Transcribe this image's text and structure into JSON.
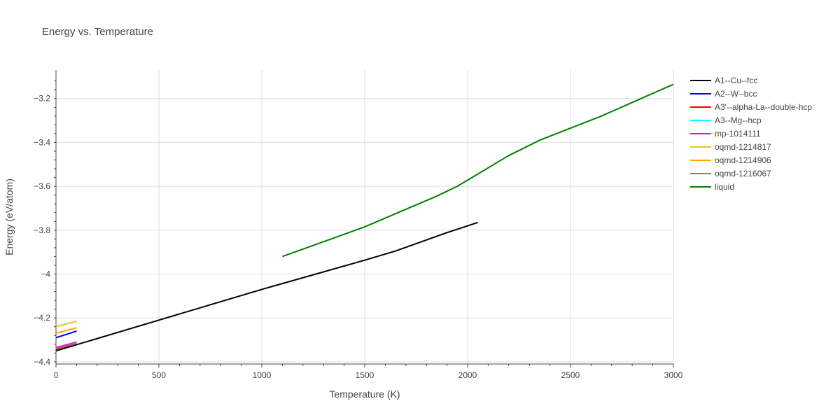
{
  "chart_data": {
    "type": "line",
    "title": "Energy vs. Temperature",
    "xlabel": "Temperature (K)",
    "ylabel": "Energy (eV/atom)",
    "xlim": [
      0,
      3000
    ],
    "ylim": [
      -4.41,
      -3.07
    ],
    "x_ticks": [
      0,
      500,
      1000,
      1500,
      2000,
      2500,
      3000
    ],
    "x_tick_labels": [
      "0",
      "500",
      "1000",
      "1500",
      "2000",
      "2500",
      "3000"
    ],
    "y_ticks": [
      -4.4,
      -4.2,
      -4.0,
      -3.8,
      -3.6,
      -3.4,
      -3.2
    ],
    "y_tick_labels": [
      "−4.4",
      "−4.2",
      "−4",
      "−3.8",
      "−3.6",
      "−3.4",
      "−3.2"
    ],
    "grid": true,
    "legend_position": "right",
    "series": [
      {
        "name": "A1--Cu--fcc",
        "color": "#000000",
        "x": [
          0,
          500,
          1000,
          1500,
          1650,
          1900,
          2050
        ],
        "y": [
          -4.35,
          -4.21,
          -4.07,
          -3.937,
          -3.895,
          -3.811,
          -3.765
        ]
      },
      {
        "name": "A2--W--bcc",
        "color": "#0000ff",
        "x": [
          0,
          100
        ],
        "y": [
          -4.29,
          -4.26
        ]
      },
      {
        "name": "A3'--alpha-La--double-hcp",
        "color": "#ff0000",
        "x": [
          0,
          100
        ],
        "y": [
          -4.345,
          -4.315
        ]
      },
      {
        "name": "A3--Mg--hcp",
        "color": "#00ffff",
        "x": [
          0,
          100
        ],
        "y": [
          -4.34,
          -4.31
        ]
      },
      {
        "name": "mp-1014111",
        "color": "#ff00ff",
        "x": [
          0,
          100
        ],
        "y": [
          -4.335,
          -4.31
        ]
      },
      {
        "name": "oqmd-1214817",
        "color": "#f0c020",
        "x": [
          0,
          100
        ],
        "y": [
          -4.24,
          -4.215
        ]
      },
      {
        "name": "oqmd-1214906",
        "color": "#ffa500",
        "x": [
          0,
          100
        ],
        "y": [
          -4.27,
          -4.245
        ]
      },
      {
        "name": "oqmd-1216067",
        "color": "#808080",
        "x": [
          0,
          100
        ],
        "y": [
          -4.34,
          -4.315
        ]
      },
      {
        "name": "liquid",
        "color": "#008000",
        "x": [
          1100,
          1500,
          1850,
          1950,
          2200,
          2350,
          2650,
          3000
        ],
        "y": [
          -3.92,
          -3.785,
          -3.645,
          -3.6,
          -3.46,
          -3.39,
          -3.28,
          -3.135
        ]
      }
    ]
  }
}
